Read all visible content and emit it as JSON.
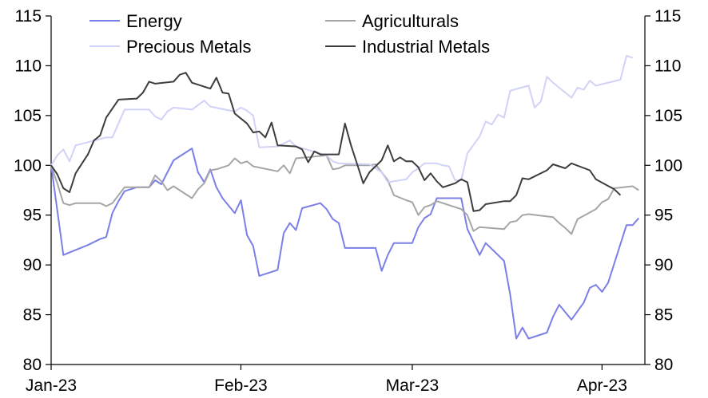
{
  "chart_data": {
    "type": "line",
    "title": "",
    "xlabel": "",
    "ylabel": "",
    "ylim": [
      80,
      115
    ],
    "yticks": [
      80,
      85,
      90,
      95,
      100,
      105,
      110,
      115
    ],
    "xlim": [
      "2023-01-01",
      "2023-04-08"
    ],
    "xticks": [
      {
        "label": "Jan-23",
        "date": "2023-01-01"
      },
      {
        "label": "Feb-23",
        "date": "2023-02-01"
      },
      {
        "label": "Mar-23",
        "date": "2023-03-01"
      },
      {
        "label": "Apr-23",
        "date": "2023-04-01"
      }
    ],
    "grid": false,
    "dual_axis_mirror": true,
    "legend": {
      "placement": "top",
      "columns": 2
    },
    "series": [
      {
        "name": "Energy",
        "color": "#7b7fe8",
        "points": [
          [
            "2023-01-01",
            100.0
          ],
          [
            "2023-01-03",
            91.0
          ],
          [
            "2023-01-05",
            91.5
          ],
          [
            "2023-01-07",
            92.0
          ],
          [
            "2023-01-09",
            92.6
          ],
          [
            "2023-01-10",
            92.8
          ],
          [
            "2023-01-11",
            95.2
          ],
          [
            "2023-01-12",
            96.4
          ],
          [
            "2023-01-13",
            97.4
          ],
          [
            "2023-01-15",
            97.8
          ],
          [
            "2023-01-17",
            97.8
          ],
          [
            "2023-01-18",
            98.5
          ],
          [
            "2023-01-19",
            98.1
          ],
          [
            "2023-01-21",
            100.5
          ],
          [
            "2023-01-24",
            101.7
          ],
          [
            "2023-01-25",
            99.3
          ],
          [
            "2023-01-26",
            98.3
          ],
          [
            "2023-01-27",
            99.6
          ],
          [
            "2023-01-28",
            97.8
          ],
          [
            "2023-01-29",
            96.7
          ],
          [
            "2023-01-31",
            95.2
          ],
          [
            "2023-02-01",
            96.5
          ],
          [
            "2023-02-02",
            93.0
          ],
          [
            "2023-02-03",
            91.9
          ],
          [
            "2023-02-04",
            88.9
          ],
          [
            "2023-02-07",
            89.5
          ],
          [
            "2023-02-08",
            93.2
          ],
          [
            "2023-02-09",
            94.2
          ],
          [
            "2023-02-10",
            93.5
          ],
          [
            "2023-02-11",
            95.7
          ],
          [
            "2023-02-14",
            96.2
          ],
          [
            "2023-02-15",
            95.6
          ],
          [
            "2023-02-16",
            94.6
          ],
          [
            "2023-02-17",
            94.2
          ],
          [
            "2023-02-18",
            91.7
          ],
          [
            "2023-02-19",
            91.7
          ],
          [
            "2023-02-23",
            91.7
          ],
          [
            "2023-02-24",
            89.4
          ],
          [
            "2023-02-25",
            91.0
          ],
          [
            "2023-02-26",
            92.2
          ],
          [
            "2023-02-28",
            92.2
          ],
          [
            "2023-03-01",
            92.2
          ],
          [
            "2023-03-02",
            93.8
          ],
          [
            "2023-03-03",
            94.7
          ],
          [
            "2023-03-04",
            95.1
          ],
          [
            "2023-03-05",
            96.7
          ],
          [
            "2023-03-09",
            96.7
          ],
          [
            "2023-03-10",
            93.6
          ],
          [
            "2023-03-12",
            91.0
          ],
          [
            "2023-03-13",
            92.2
          ],
          [
            "2023-03-16",
            90.4
          ],
          [
            "2023-03-17",
            87.0
          ],
          [
            "2023-03-18",
            82.6
          ],
          [
            "2023-03-19",
            83.7
          ],
          [
            "2023-03-20",
            82.6
          ],
          [
            "2023-03-23",
            83.2
          ],
          [
            "2023-03-24",
            84.8
          ],
          [
            "2023-03-25",
            86.0
          ],
          [
            "2023-03-27",
            84.5
          ],
          [
            "2023-03-29",
            86.2
          ],
          [
            "2023-03-30",
            87.7
          ],
          [
            "2023-03-31",
            88.0
          ],
          [
            "2023-04-01",
            87.3
          ],
          [
            "2023-04-02",
            88.2
          ],
          [
            "2023-04-05",
            94.0
          ],
          [
            "2023-04-06",
            94.0
          ],
          [
            "2023-04-07",
            94.7
          ]
        ]
      },
      {
        "name": "Agriculturals",
        "color": "#a6a6a6",
        "points": [
          [
            "2023-01-01",
            100.0
          ],
          [
            "2023-01-02",
            98.2
          ],
          [
            "2023-01-03",
            96.2
          ],
          [
            "2023-01-04",
            96.0
          ],
          [
            "2023-01-05",
            96.2
          ],
          [
            "2023-01-08",
            96.2
          ],
          [
            "2023-01-09",
            96.2
          ],
          [
            "2023-01-10",
            95.9
          ],
          [
            "2023-01-11",
            96.2
          ],
          [
            "2023-01-12",
            97.0
          ],
          [
            "2023-01-13",
            97.8
          ],
          [
            "2023-01-17",
            97.8
          ],
          [
            "2023-01-18",
            99.0
          ],
          [
            "2023-01-19",
            98.4
          ],
          [
            "2023-01-20",
            97.5
          ],
          [
            "2023-01-21",
            97.9
          ],
          [
            "2023-01-24",
            96.7
          ],
          [
            "2023-01-25",
            97.6
          ],
          [
            "2023-01-26",
            98.2
          ],
          [
            "2023-01-27",
            99.5
          ],
          [
            "2023-01-28",
            99.6
          ],
          [
            "2023-01-30",
            100.0
          ],
          [
            "2023-01-31",
            100.7
          ],
          [
            "2023-02-01",
            100.2
          ],
          [
            "2023-02-02",
            100.4
          ],
          [
            "2023-02-03",
            99.9
          ],
          [
            "2023-02-07",
            99.4
          ],
          [
            "2023-02-08",
            100.0
          ],
          [
            "2023-02-09",
            99.2
          ],
          [
            "2023-02-10",
            100.7
          ],
          [
            "2023-02-15",
            101.0
          ],
          [
            "2023-02-16",
            99.6
          ],
          [
            "2023-02-17",
            99.7
          ],
          [
            "2023-02-18",
            100.0
          ],
          [
            "2023-02-22",
            100.0
          ],
          [
            "2023-02-23",
            100.1
          ],
          [
            "2023-02-25",
            98.5
          ],
          [
            "2023-02-26",
            97.0
          ],
          [
            "2023-02-28",
            96.5
          ],
          [
            "2023-03-01",
            96.3
          ],
          [
            "2023-03-02",
            95.0
          ],
          [
            "2023-03-03",
            95.8
          ],
          [
            "2023-03-04",
            96.0
          ],
          [
            "2023-03-05",
            96.4
          ],
          [
            "2023-03-09",
            95.6
          ],
          [
            "2023-03-10",
            95.0
          ],
          [
            "2023-03-11",
            93.4
          ],
          [
            "2023-03-12",
            93.8
          ],
          [
            "2023-03-16",
            93.6
          ],
          [
            "2023-03-17",
            94.3
          ],
          [
            "2023-03-18",
            94.4
          ],
          [
            "2023-03-19",
            95.0
          ],
          [
            "2023-03-20",
            95.1
          ],
          [
            "2023-03-24",
            94.8
          ],
          [
            "2023-03-25",
            94.2
          ],
          [
            "2023-03-26",
            93.7
          ],
          [
            "2023-03-27",
            93.1
          ],
          [
            "2023-03-28",
            94.6
          ],
          [
            "2023-03-31",
            95.6
          ],
          [
            "2023-04-01",
            96.3
          ],
          [
            "2023-04-02",
            96.6
          ],
          [
            "2023-04-03",
            97.7
          ],
          [
            "2023-04-06",
            97.9
          ],
          [
            "2023-04-07",
            97.5
          ]
        ]
      },
      {
        "name": "Precious Metals",
        "color": "#d0d2f7",
        "points": [
          [
            "2023-01-01",
            100.0
          ],
          [
            "2023-01-02",
            101.0
          ],
          [
            "2023-01-03",
            101.6
          ],
          [
            "2023-01-04",
            100.4
          ],
          [
            "2023-01-05",
            102.0
          ],
          [
            "2023-01-10",
            102.8
          ],
          [
            "2023-01-11",
            102.8
          ],
          [
            "2023-01-13",
            105.6
          ],
          [
            "2023-01-17",
            105.6
          ],
          [
            "2023-01-18",
            104.9
          ],
          [
            "2023-01-19",
            104.6
          ],
          [
            "2023-01-20",
            105.4
          ],
          [
            "2023-01-21",
            105.8
          ],
          [
            "2023-01-24",
            105.6
          ],
          [
            "2023-01-26",
            106.5
          ],
          [
            "2023-01-27",
            105.9
          ],
          [
            "2023-01-31",
            105.4
          ],
          [
            "2023-02-01",
            105.8
          ],
          [
            "2023-02-02",
            105.5
          ],
          [
            "2023-02-03",
            105.0
          ],
          [
            "2023-02-04",
            101.8
          ],
          [
            "2023-02-07",
            101.9
          ],
          [
            "2023-02-09",
            102.5
          ],
          [
            "2023-02-10",
            101.9
          ],
          [
            "2023-02-15",
            101.0
          ],
          [
            "2023-02-16",
            100.4
          ],
          [
            "2023-02-17",
            100.2
          ],
          [
            "2023-02-22",
            100.1
          ],
          [
            "2023-02-23",
            99.7
          ],
          [
            "2023-02-24",
            99.3
          ],
          [
            "2023-02-25",
            98.3
          ],
          [
            "2023-02-28",
            98.6
          ],
          [
            "2023-03-01",
            99.3
          ],
          [
            "2023-03-02",
            99.7
          ],
          [
            "2023-03-03",
            100.2
          ],
          [
            "2023-03-05",
            100.2
          ],
          [
            "2023-03-06",
            100.0
          ],
          [
            "2023-03-07",
            99.9
          ],
          [
            "2023-03-08",
            98.5
          ],
          [
            "2023-03-09",
            98.5
          ],
          [
            "2023-03-10",
            101.2
          ],
          [
            "2023-03-12",
            102.9
          ],
          [
            "2023-03-13",
            104.4
          ],
          [
            "2023-03-14",
            104.1
          ],
          [
            "2023-03-15",
            105.1
          ],
          [
            "2023-03-16",
            104.8
          ],
          [
            "2023-03-17",
            107.5
          ],
          [
            "2023-03-20",
            108.0
          ],
          [
            "2023-03-21",
            105.8
          ],
          [
            "2023-03-22",
            106.4
          ],
          [
            "2023-03-23",
            108.9
          ],
          [
            "2023-03-24",
            108.3
          ],
          [
            "2023-03-27",
            106.8
          ],
          [
            "2023-03-28",
            107.8
          ],
          [
            "2023-03-29",
            107.6
          ],
          [
            "2023-03-30",
            108.5
          ],
          [
            "2023-03-31",
            108.0
          ],
          [
            "2023-04-04",
            108.6
          ],
          [
            "2023-04-05",
            111.0
          ],
          [
            "2023-04-06",
            110.8
          ]
        ]
      },
      {
        "name": "Industrial Metals",
        "color": "#3d3d3d",
        "points": [
          [
            "2023-01-01",
            100.0
          ],
          [
            "2023-01-02",
            99.1
          ],
          [
            "2023-01-03",
            97.7
          ],
          [
            "2023-01-04",
            97.3
          ],
          [
            "2023-01-05",
            99.2
          ],
          [
            "2023-01-07",
            101.1
          ],
          [
            "2023-01-08",
            102.5
          ],
          [
            "2023-01-09",
            103.0
          ],
          [
            "2023-01-10",
            104.8
          ],
          [
            "2023-01-12",
            106.6
          ],
          [
            "2023-01-15",
            106.7
          ],
          [
            "2023-01-16",
            107.3
          ],
          [
            "2023-01-17",
            108.4
          ],
          [
            "2023-01-18",
            108.2
          ],
          [
            "2023-01-21",
            108.4
          ],
          [
            "2023-01-22",
            109.1
          ],
          [
            "2023-01-23",
            109.3
          ],
          [
            "2023-01-24",
            108.3
          ],
          [
            "2023-01-27",
            107.7
          ],
          [
            "2023-01-28",
            108.8
          ],
          [
            "2023-01-29",
            107.3
          ],
          [
            "2023-01-30",
            107.2
          ],
          [
            "2023-01-31",
            105.2
          ],
          [
            "2023-02-02",
            104.2
          ],
          [
            "2023-02-03",
            103.3
          ],
          [
            "2023-02-04",
            103.4
          ],
          [
            "2023-02-05",
            102.8
          ],
          [
            "2023-02-06",
            104.3
          ],
          [
            "2023-02-07",
            102.0
          ],
          [
            "2023-02-10",
            101.9
          ],
          [
            "2023-02-11",
            101.6
          ],
          [
            "2023-02-12",
            100.3
          ],
          [
            "2023-02-13",
            101.4
          ],
          [
            "2023-02-14",
            101.1
          ],
          [
            "2023-02-17",
            101.1
          ],
          [
            "2023-02-18",
            104.2
          ],
          [
            "2023-02-19",
            102.0
          ],
          [
            "2023-02-20",
            100.1
          ],
          [
            "2023-02-21",
            98.2
          ],
          [
            "2023-02-22",
            99.3
          ],
          [
            "2023-02-24",
            100.5
          ],
          [
            "2023-02-25",
            102.0
          ],
          [
            "2023-02-26",
            100.4
          ],
          [
            "2023-02-27",
            100.8
          ],
          [
            "2023-02-28",
            100.4
          ],
          [
            "2023-03-01",
            100.4
          ],
          [
            "2023-03-02",
            99.8
          ],
          [
            "2023-03-03",
            98.5
          ],
          [
            "2023-03-04",
            99.2
          ],
          [
            "2023-03-05",
            98.4
          ],
          [
            "2023-03-06",
            97.8
          ],
          [
            "2023-03-08",
            98.2
          ],
          [
            "2023-03-09",
            98.6
          ],
          [
            "2023-03-10",
            98.3
          ],
          [
            "2023-03-11",
            95.4
          ],
          [
            "2023-03-12",
            95.5
          ],
          [
            "2023-03-13",
            96.1
          ],
          [
            "2023-03-16",
            96.4
          ],
          [
            "2023-03-17",
            96.4
          ],
          [
            "2023-03-18",
            97.0
          ],
          [
            "2023-03-19",
            98.7
          ],
          [
            "2023-03-20",
            98.6
          ],
          [
            "2023-03-23",
            99.5
          ],
          [
            "2023-03-24",
            100.1
          ],
          [
            "2023-03-25",
            99.9
          ],
          [
            "2023-03-26",
            99.7
          ],
          [
            "2023-03-27",
            100.2
          ],
          [
            "2023-03-30",
            99.5
          ],
          [
            "2023-03-31",
            98.6
          ],
          [
            "2023-04-03",
            97.6
          ],
          [
            "2023-04-04",
            97.0
          ]
        ]
      }
    ]
  }
}
